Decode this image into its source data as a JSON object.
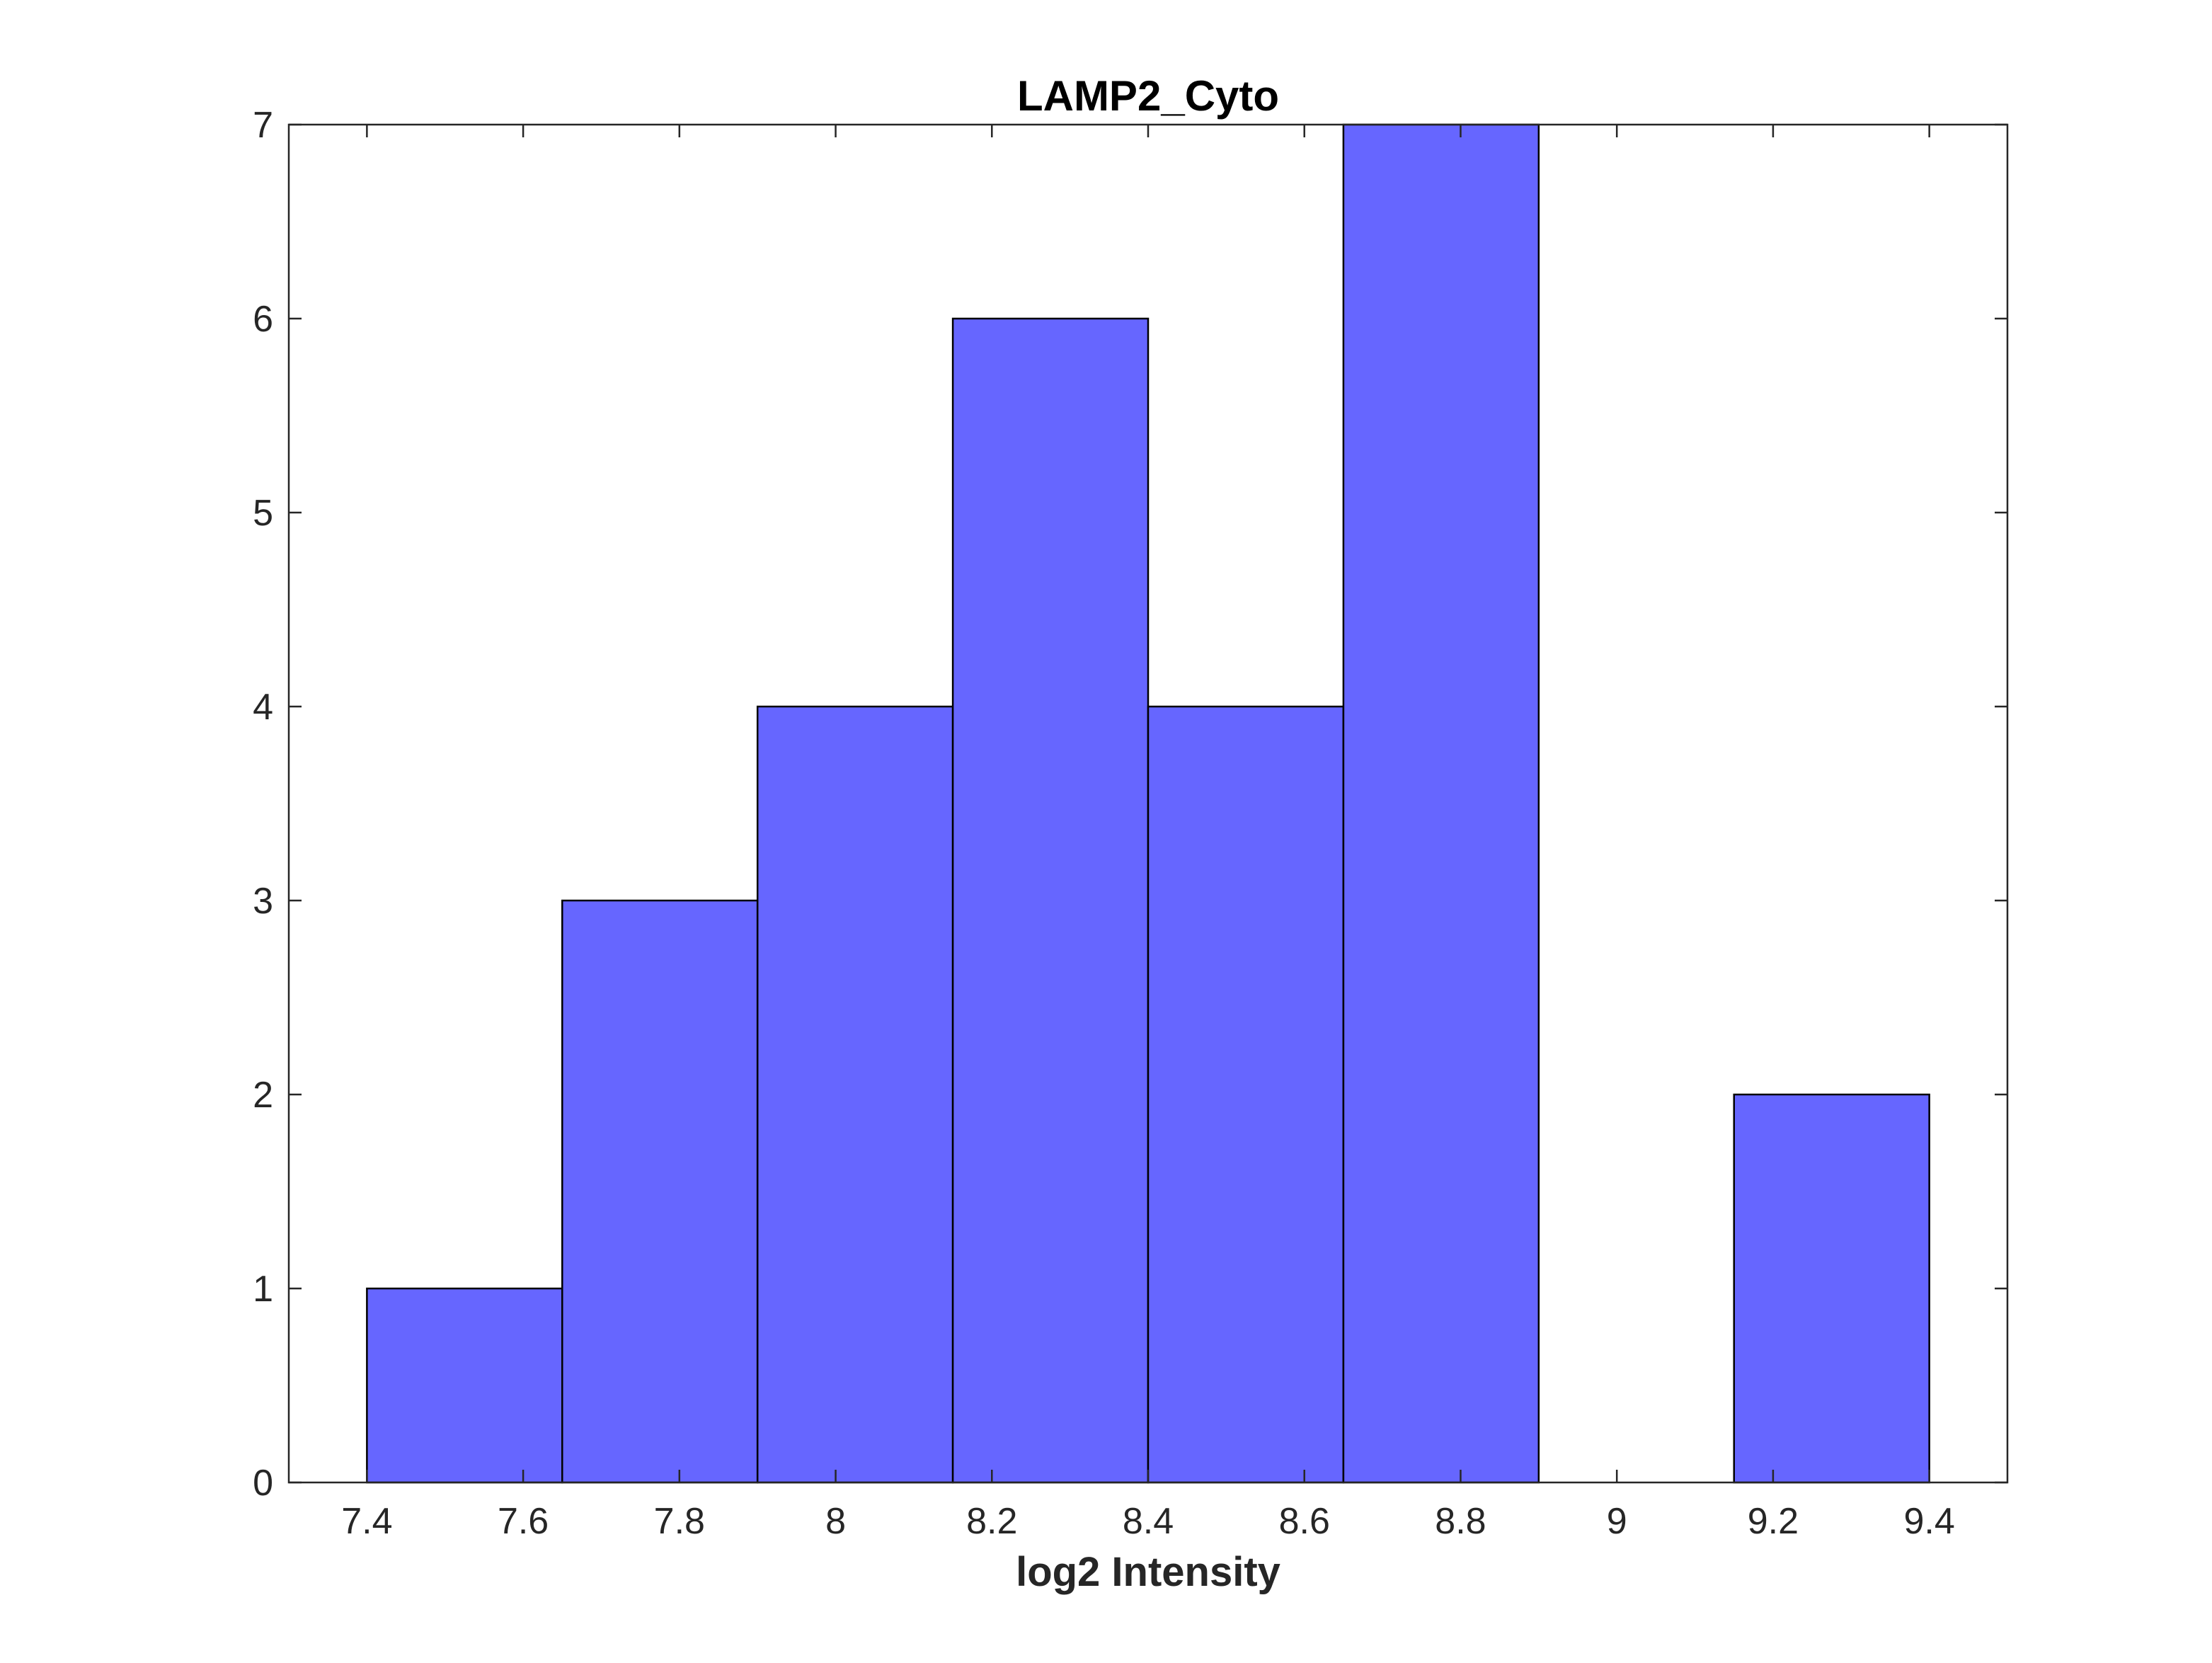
{
  "chart_data": {
    "type": "bar",
    "title": "LAMP2_Cyto",
    "xlabel": "log2 Intensity",
    "ylabel": "",
    "xlim": [
      7.3,
      9.5
    ],
    "ylim": [
      0,
      7
    ],
    "x_ticks": [
      7.4,
      7.6,
      7.8,
      8,
      8.2,
      8.4,
      8.6,
      8.8,
      9,
      9.2,
      9.4
    ],
    "x_tick_labels": [
      "7.4",
      "7.6",
      "7.8",
      "8",
      "8.2",
      "8.4",
      "8.6",
      "8.8",
      "9",
      "9.2",
      "9.4"
    ],
    "y_ticks": [
      0,
      1,
      2,
      3,
      4,
      5,
      6,
      7
    ],
    "y_tick_labels": [
      "0",
      "1",
      "2",
      "3",
      "4",
      "5",
      "6",
      "7"
    ],
    "bin_edges": [
      7.4,
      7.65,
      7.9,
      8.15,
      8.4,
      8.65,
      8.9,
      9.15,
      9.4
    ],
    "counts": [
      1,
      3,
      4,
      6,
      4,
      7,
      0,
      2
    ],
    "grid": false,
    "legend": "none",
    "colors": {
      "bar_fill": "#6666ff",
      "bar_edge": "#000000",
      "axis": "#262626"
    }
  }
}
